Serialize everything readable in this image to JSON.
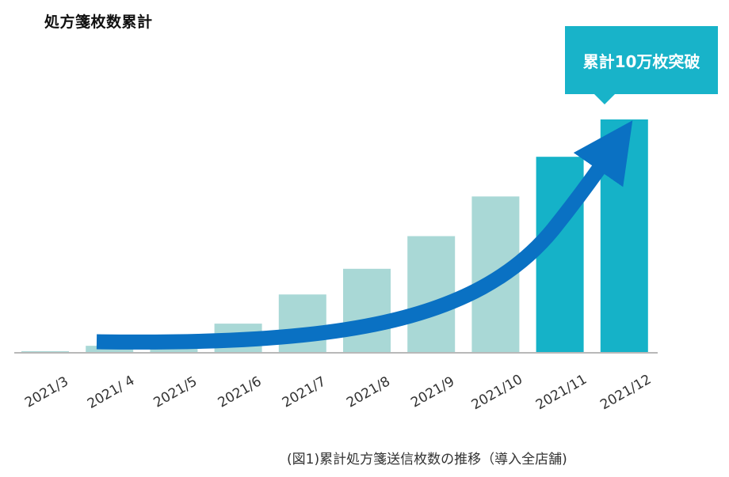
{
  "title": "処方箋枚数累計",
  "caption": "(図1)累計処方箋送信枚数の推移（導入全店舗)",
  "callout": {
    "text": "累計10万枚突破"
  },
  "colors": {
    "light_bar": "#a9d8d6",
    "highlight_bar": "#15b2c8",
    "arrow": "#0a71c3",
    "baseline": "#b8b8b8",
    "tick_text": "#333333"
  },
  "chart_data": {
    "type": "bar",
    "title": "処方箋枚数累計",
    "categories": [
      "2021/3",
      "2021/ 4",
      "2021/5",
      "2021/6",
      "2021/7",
      "2021/8",
      "2021/9",
      "2021/10",
      "2021/11",
      "2021/12"
    ],
    "values": [
      0.6,
      3.0,
      4.5,
      12.5,
      25.0,
      36.0,
      50.0,
      67.0,
      84.0,
      100.0
    ],
    "highlighted_categories": [
      "2021/11",
      "2021/12"
    ],
    "ylim": [
      0,
      100
    ],
    "grid": false,
    "annotations": [
      "累計10万枚突破"
    ]
  }
}
